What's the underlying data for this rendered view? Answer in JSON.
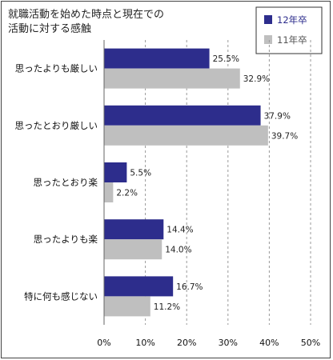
{
  "chart_data": {
    "type": "bar",
    "orientation": "horizontal",
    "title_lines": [
      "就職活動を始めた時点と現在での",
      "活動に対する感触"
    ],
    "categories": [
      "思ったよりも厳しい",
      "思ったとおり厳しい",
      "思ったとおり楽",
      "思ったよりも楽",
      "特に何も感じない"
    ],
    "series": [
      {
        "name": "12年卒",
        "values": [
          25.5,
          37.9,
          5.5,
          14.4,
          16.7
        ],
        "labels": [
          "25.5%",
          "37.9%",
          "5.5%",
          "14.4%",
          "16.7%"
        ],
        "color": "#2d2d8c"
      },
      {
        "name": "11年卒",
        "values": [
          32.9,
          39.7,
          2.2,
          14.0,
          11.2
        ],
        "labels": [
          "32.9%",
          "39.7%",
          "2.2%",
          "14.0%",
          "11.2%"
        ],
        "color": "#bfbfbf"
      }
    ],
    "xlim": [
      0,
      50
    ],
    "xticks": [
      0,
      10,
      20,
      30,
      40,
      50
    ],
    "xtick_labels": [
      "0%",
      "10%",
      "20%",
      "30%",
      "40%",
      "50%"
    ],
    "grid": "vertical-dashed",
    "legend_position": "top-right"
  }
}
